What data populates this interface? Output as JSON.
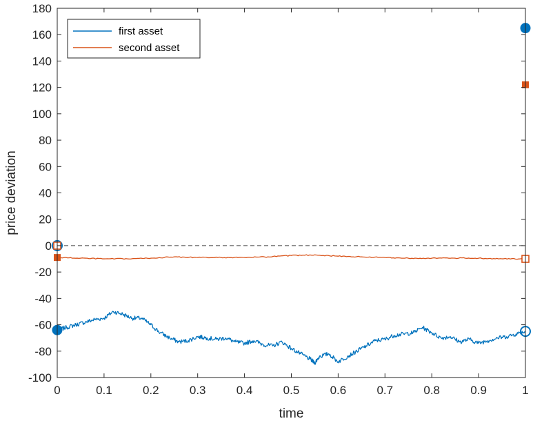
{
  "chart_data": {
    "type": "line",
    "title": "",
    "xlabel": "time",
    "ylabel": "price deviation",
    "xlim": [
      0,
      1
    ],
    "ylim": [
      -100,
      180
    ],
    "xticks": [
      0,
      0.1,
      0.2,
      0.3,
      0.4,
      0.5,
      0.6,
      0.7,
      0.8,
      0.9,
      1
    ],
    "xtick_labels": [
      "0",
      "0.1",
      "0.2",
      "0.3",
      "0.4",
      "0.5",
      "0.6",
      "0.7",
      "0.8",
      "0.9",
      "1"
    ],
    "yticks": [
      -100,
      -80,
      -60,
      -40,
      -20,
      0,
      20,
      40,
      60,
      80,
      100,
      120,
      140,
      160,
      180
    ],
    "ytick_labels": [
      "-100",
      "-80",
      "-60",
      "-40",
      "-20",
      "0",
      "20",
      "40",
      "60",
      "80",
      "100",
      "120",
      "140",
      "160",
      "180"
    ],
    "grid": false,
    "legend_position": "top-left",
    "reference_line": {
      "y": 0,
      "style": "dashed",
      "color": "#404040"
    },
    "series": [
      {
        "name": "first asset",
        "color": "#0072BD",
        "x": [
          0,
          0.02,
          0.04,
          0.06,
          0.08,
          0.1,
          0.12,
          0.14,
          0.16,
          0.18,
          0.2,
          0.22,
          0.24,
          0.26,
          0.28,
          0.3,
          0.32,
          0.34,
          0.36,
          0.38,
          0.4,
          0.42,
          0.44,
          0.46,
          0.48,
          0.5,
          0.52,
          0.54,
          0.55,
          0.56,
          0.58,
          0.6,
          0.62,
          0.64,
          0.66,
          0.68,
          0.7,
          0.72,
          0.74,
          0.76,
          0.78,
          0.8,
          0.82,
          0.84,
          0.86,
          0.88,
          0.9,
          0.92,
          0.94,
          0.96,
          0.98,
          1
        ],
        "y": [
          -64,
          -62,
          -60,
          -58,
          -56,
          -55,
          -50,
          -52,
          -55,
          -55,
          -60,
          -66,
          -70,
          -73,
          -72,
          -69,
          -70,
          -71,
          -70,
          -73,
          -74,
          -72,
          -75,
          -76,
          -73,
          -78,
          -82,
          -86,
          -89,
          -84,
          -82,
          -88,
          -84,
          -80,
          -76,
          -72,
          -71,
          -68,
          -67,
          -66,
          -62,
          -66,
          -70,
          -69,
          -73,
          -71,
          -74,
          -72,
          -70,
          -69,
          -67,
          -65
        ]
      },
      {
        "name": "second asset",
        "color": "#D95319",
        "x": [
          0,
          0.05,
          0.1,
          0.15,
          0.2,
          0.25,
          0.3,
          0.35,
          0.4,
          0.45,
          0.5,
          0.55,
          0.6,
          0.65,
          0.7,
          0.75,
          0.8,
          0.85,
          0.9,
          0.95,
          1
        ],
        "y": [
          -9,
          -9.5,
          -10,
          -10,
          -9.5,
          -8.5,
          -9,
          -9,
          -9,
          -8.5,
          -7.5,
          -7,
          -8,
          -8.5,
          -9,
          -9.5,
          -9.5,
          -9.5,
          -9.5,
          -10,
          -10
        ]
      }
    ],
    "markers": [
      {
        "series": "first asset",
        "x": 0,
        "y": -64,
        "shape": "circle",
        "filled": true
      },
      {
        "series": "first asset",
        "x": 0,
        "y": 0,
        "shape": "circle",
        "filled": false
      },
      {
        "series": "first asset",
        "x": 1,
        "y": 165,
        "shape": "circle",
        "filled": true
      },
      {
        "series": "first asset",
        "x": 1,
        "y": -65,
        "shape": "circle",
        "filled": false
      },
      {
        "series": "second asset",
        "x": 0,
        "y": -9,
        "shape": "square",
        "filled": true
      },
      {
        "series": "second asset",
        "x": 0,
        "y": 0,
        "shape": "square",
        "filled": false
      },
      {
        "series": "second asset",
        "x": 1,
        "y": 122,
        "shape": "square",
        "filled": true
      },
      {
        "series": "second asset",
        "x": 1,
        "y": -10,
        "shape": "square",
        "filled": false
      }
    ]
  }
}
